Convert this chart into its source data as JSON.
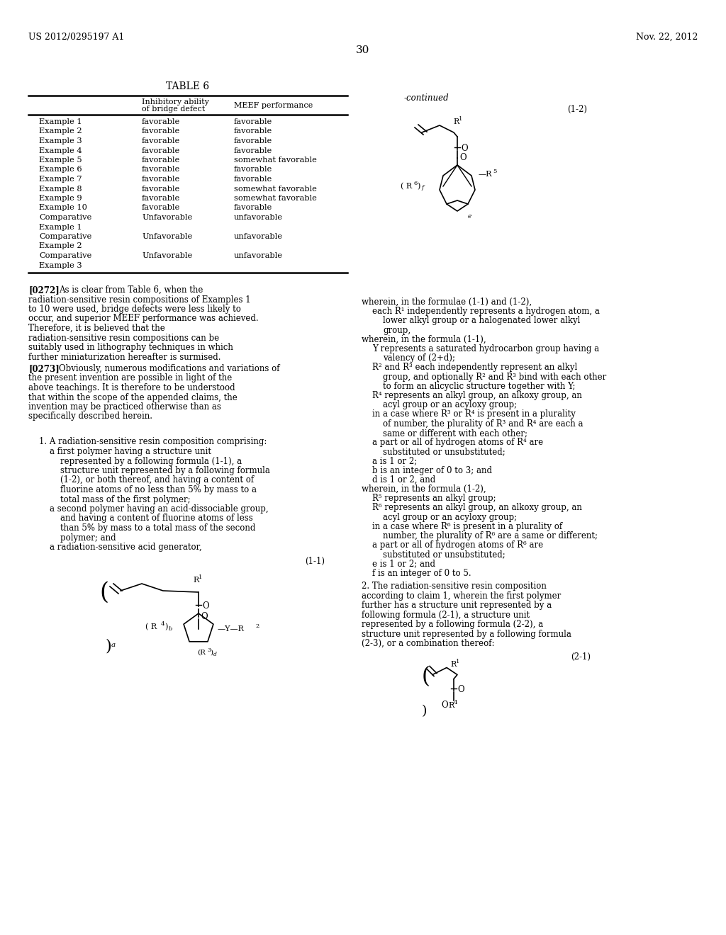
{
  "page_header_left": "US 2012/0295197 A1",
  "page_header_right": "Nov. 22, 2012",
  "page_number": "30",
  "bg": "#ffffff",
  "tc": "#000000",
  "table_title": "TABLE 6",
  "col2_hdr_line1": "Inhibitory ability",
  "col2_hdr_line2": "of bridge defect",
  "col3_hdr": "MEEF performance",
  "table_rows": [
    [
      "Example 1",
      "favorable",
      "favorable"
    ],
    [
      "Example 2",
      "favorable",
      "favorable"
    ],
    [
      "Example 3",
      "favorable",
      "favorable"
    ],
    [
      "Example 4",
      "favorable",
      "favorable"
    ],
    [
      "Example 5",
      "favorable",
      "somewhat favorable"
    ],
    [
      "Example 6",
      "favorable",
      "favorable"
    ],
    [
      "Example 7",
      "favorable",
      "favorable"
    ],
    [
      "Example 8",
      "favorable",
      "somewhat favorable"
    ],
    [
      "Example 9",
      "favorable",
      "somewhat favorable"
    ],
    [
      "Example 10",
      "favorable",
      "favorable"
    ],
    [
      "Comparative",
      "Unfavorable",
      "unfavorable"
    ],
    [
      "Example 1",
      "",
      ""
    ],
    [
      "Comparative",
      "Unfavorable",
      "unfavorable"
    ],
    [
      "Example 2",
      "",
      ""
    ],
    [
      "Comparative",
      "Unfavorable",
      "unfavorable"
    ],
    [
      "Example 3",
      "",
      ""
    ]
  ],
  "p272_tag": "[0272]",
  "p272_body": "As is clear from Table 6, when the radiation-sensitive resin compositions of Examples 1 to 10 were used, bridge defects were less likely to occur, and superior MEEF performance was achieved. Therefore, it is believed that the radiation-sensitive resin compositions can be suitably used in lithography techniques in which further miniaturization hereafter is surmised.",
  "p273_tag": "[0273]",
  "p273_body": "Obviously, numerous modifications and variations of the present invention are possible in light of the above teachings. It is therefore to be understood that within the scope of the appended claims, the invention may be practiced otherwise than as specifically described herein.",
  "claim1_intro": "1. A radiation-sensitive resin composition comprising:",
  "claim1_a": "a first polymer having a structure unit represented by a following formula (1-1), a structure unit represented by a following formula (1-2), or both thereof, and having a content of fluorine atoms of no less than 5% by mass to a total mass of the first polymer;",
  "claim1_b": "a second polymer having an acid-dissociable group, and having a content of fluorine atoms of less than 5% by mass to a total mass of the second polymer; and",
  "claim1_c": "a radiation-sensitive acid generator,",
  "label_11": "(1-1)",
  "label_12": "(1-2)",
  "continued": "-continued",
  "right_paras": [
    [
      "wherein, in the formulae (1-1) and (1-2),",
      0
    ],
    [
      "each R¹ independently represents a hydrogen atom, a lower alkyl group or a halogenated lower alkyl group,",
      1
    ],
    [
      "wherein, in the formula (1-1),",
      0
    ],
    [
      "Y represents a saturated hydrocarbon group having a valency of (2+d);",
      1
    ],
    [
      "R² and R³ each independently represent an alkyl group, and optionally R² and R³ bind with each other to form an alicyclic structure together with Y;",
      1
    ],
    [
      "R⁴ represents an alkyl group, an alkoxy group, an acyl group or an acyloxy group;",
      1
    ],
    [
      "in a case where R³ or R⁴ is present in a plurality of number, the plurality of R³ and R⁴ are each a same or different with each other;",
      1
    ],
    [
      "a part or all of hydrogen atoms of R⁴ are substituted or unsubstituted;",
      1
    ],
    [
      "a is 1 or 2;",
      1
    ],
    [
      "b is an integer of 0 to 3; and",
      1
    ],
    [
      "d is 1 or 2, and",
      1
    ],
    [
      "wherein, in the formula (1-2),",
      0
    ],
    [
      "R⁵ represents an alkyl group;",
      1
    ],
    [
      "R⁶ represents an alkyl group, an alkoxy group, an acyl group or an acyloxy group;",
      1
    ],
    [
      "in a case where R⁶ is present in a plurality of number, the plurality of R⁶ are a same or different;",
      1
    ],
    [
      "a part or all of hydrogen atoms of R⁶ are substituted or unsubstituted;",
      1
    ],
    [
      "e is 1 or 2; and",
      1
    ],
    [
      "f is an integer of 0 to 5.",
      1
    ]
  ],
  "claim2_text": "2. The radiation-sensitive resin composition according to claim 1, wherein the first polymer further has a structure unit represented by a following formula (2-1), a structure unit represented by a following formula (2-2), a structure unit represented by a following formula (2-3), or a combination thereof:",
  "label_21": "(2-1)"
}
